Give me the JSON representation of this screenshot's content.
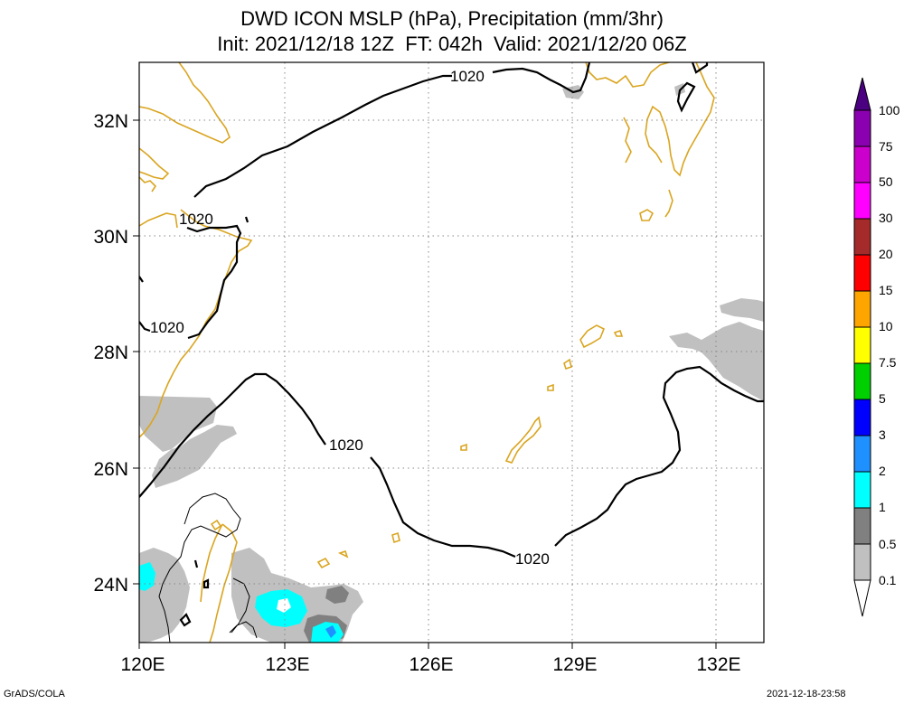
{
  "title": {
    "line1": "DWD ICON MSLP (hPa), Precipitation (mm/3hr)",
    "line2": "Init: 2021/12/18 12Z  FT: 042h  Valid: 2021/12/20 06Z"
  },
  "map": {
    "lon_range": [
      120,
      133
    ],
    "lat_range": [
      23,
      33
    ],
    "lon_ticks": [
      "120E",
      "123E",
      "126E",
      "129E",
      "132E"
    ],
    "lat_ticks": [
      "32N",
      "30N",
      "28N",
      "26N",
      "24N"
    ],
    "coast_color": "#DAA520",
    "isobar_color": "#000000",
    "grid_style": "dotted"
  },
  "isobars": [
    {
      "value": "1020",
      "labels": [
        "1020",
        "1020",
        "1020",
        "1020",
        "1020"
      ]
    }
  ],
  "colorbar": {
    "labels": [
      "100",
      "75",
      "50",
      "30",
      "20",
      "15",
      "10",
      "7.5",
      "5",
      "3",
      "2",
      "1",
      "0.5",
      "0.1"
    ],
    "colors": [
      "#4B0082",
      "#8B00B0",
      "#CC00CC",
      "#FF00FF",
      "#A52A2A",
      "#FF0000",
      "#FFA500",
      "#FFFF00",
      "#00D000",
      "#0000FF",
      "#1E90FF",
      "#00FFFF",
      "#808080",
      "#C0C0C0",
      "#FFFFFF"
    ]
  },
  "footer": {
    "left": "GrADS/COLA",
    "right": "2021-12-18-23:58"
  }
}
